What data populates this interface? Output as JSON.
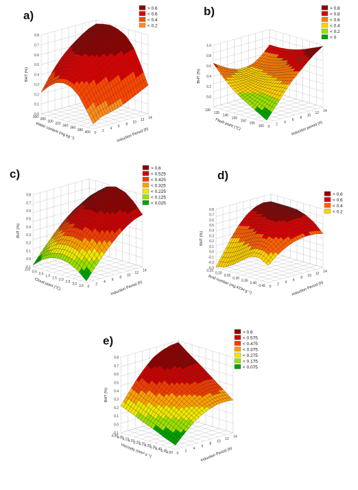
{
  "chart_data": [
    {
      "type": "surface",
      "panel_label": "a)",
      "xlabel": "Induction Period (h)",
      "ylabel": "Water content (mg kg⁻¹)",
      "zlabel": "BHT (%)",
      "x_ticks": [
        "0",
        "2",
        "4",
        "6",
        "8",
        "10",
        "12",
        "14"
      ],
      "y_ticks": [
        "260",
        "280",
        "300",
        "320",
        "340",
        "360",
        "380",
        "400"
      ],
      "z_ticks": [
        "0.0",
        "0.1",
        "0.2",
        "0.3",
        "0.4",
        "0.5",
        "0.6",
        "0.7",
        "0.8"
      ],
      "zlim": [
        0,
        0.8
      ],
      "legend": [
        "> 0.6",
        "< 0.6",
        "< 0.4",
        "< 0.2"
      ],
      "legend_colors": [
        "#8c0000",
        "#d90000",
        "#ff4600",
        "#ff8c1a"
      ],
      "surface": [
        [
          0.05,
          0.1,
          0.12,
          0.14,
          0.17,
          0.21,
          0.25,
          0.29
        ],
        [
          0.18,
          0.24,
          0.28,
          0.32,
          0.36,
          0.4,
          0.44,
          0.48
        ],
        [
          0.3,
          0.38,
          0.44,
          0.49,
          0.53,
          0.57,
          0.61,
          0.64
        ],
        [
          0.36,
          0.45,
          0.52,
          0.58,
          0.62,
          0.66,
          0.7,
          0.73
        ],
        [
          0.38,
          0.48,
          0.56,
          0.62,
          0.67,
          0.71,
          0.74,
          0.77
        ],
        [
          0.36,
          0.47,
          0.56,
          0.63,
          0.68,
          0.72,
          0.76,
          0.79
        ],
        [
          0.3,
          0.42,
          0.52,
          0.6,
          0.66,
          0.71,
          0.75,
          0.78
        ],
        [
          0.22,
          0.35,
          0.46,
          0.55,
          0.62,
          0.68,
          0.73,
          0.76
        ]
      ]
    },
    {
      "type": "surface",
      "panel_label": "b)",
      "xlabel": "Induction period (h)",
      "ylabel": "Flash point (°C)",
      "zlabel": "BHT (%)",
      "x_ticks": [
        "0",
        "2",
        "4",
        "6",
        "8",
        "10",
        "12",
        "14"
      ],
      "y_ticks": [
        "130",
        "135",
        "140",
        "145",
        "150",
        "155",
        "160"
      ],
      "z_ticks": [
        "0.0",
        "0.2",
        "0.4",
        "0.6",
        "0.8",
        "1.0"
      ],
      "zlim": [
        -0.2,
        1.0
      ],
      "legend": [
        "> 0.8",
        "< 0.8",
        "< 0.6",
        "< 0.4",
        "< 0.2",
        "< 0"
      ],
      "legend_colors": [
        "#8c0000",
        "#d90000",
        "#ff7a00",
        "#ffd200",
        "#9be000",
        "#00a000"
      ],
      "surface": [
        [
          -0.15,
          0.05,
          0.25,
          0.45,
          0.6,
          0.75,
          0.88,
          0.98
        ],
        [
          -0.05,
          0.1,
          0.25,
          0.4,
          0.55,
          0.68,
          0.8,
          0.9
        ],
        [
          0.05,
          0.15,
          0.25,
          0.36,
          0.48,
          0.6,
          0.72,
          0.82
        ],
        [
          0.15,
          0.2,
          0.26,
          0.33,
          0.42,
          0.52,
          0.64,
          0.76
        ],
        [
          0.28,
          0.28,
          0.29,
          0.32,
          0.38,
          0.47,
          0.58,
          0.72
        ],
        [
          0.45,
          0.4,
          0.36,
          0.34,
          0.37,
          0.44,
          0.55,
          0.7
        ],
        [
          0.65,
          0.55,
          0.46,
          0.4,
          0.39,
          0.43,
          0.54,
          0.7
        ]
      ]
    },
    {
      "type": "surface",
      "panel_label": "c)",
      "xlabel": "Induction Period (h)",
      "ylabel": "Cloud point (°C)",
      "zlabel": "BHT (%)",
      "x_ticks": [
        "0",
        "2",
        "4",
        "6",
        "8",
        "10",
        "12",
        "14"
      ],
      "y_ticks": [
        "-0.5",
        "0.0",
        "0.5",
        "1.0",
        "1.5",
        "2.0",
        "2.5",
        "3.0",
        "3.5"
      ],
      "z_ticks": [
        "-0.1",
        "0.0",
        "0.1",
        "0.2",
        "0.3",
        "0.4",
        "0.5",
        "0.6",
        "0.7",
        "0.8"
      ],
      "zlim": [
        -0.1,
        0.8
      ],
      "legend": [
        "> 0.6",
        "< 0.525",
        "< 0.425",
        "< 0.325",
        "< 0.225",
        "< 0.125",
        "< 0.025"
      ],
      "legend_colors": [
        "#8c0000",
        "#c80000",
        "#f03c00",
        "#ffa000",
        "#f0e600",
        "#9be000",
        "#00a000"
      ],
      "surface": [
        [
          -0.08,
          0.05,
          0.17,
          0.28,
          0.38,
          0.46,
          0.52,
          0.55
        ],
        [
          0.02,
          0.16,
          0.29,
          0.41,
          0.51,
          0.59,
          0.65,
          0.68
        ],
        [
          0.08,
          0.23,
          0.37,
          0.49,
          0.6,
          0.68,
          0.74,
          0.77
        ],
        [
          0.1,
          0.25,
          0.39,
          0.52,
          0.62,
          0.71,
          0.77,
          0.8
        ],
        [
          0.08,
          0.23,
          0.37,
          0.49,
          0.6,
          0.68,
          0.74,
          0.77
        ],
        [
          0.02,
          0.16,
          0.29,
          0.41,
          0.51,
          0.59,
          0.65,
          0.68
        ],
        [
          -0.08,
          0.05,
          0.17,
          0.28,
          0.38,
          0.46,
          0.52,
          0.55
        ]
      ]
    },
    {
      "type": "surface",
      "panel_label": "d)",
      "xlabel": "Induction Period (h)",
      "ylabel": "Acid number (mg KOH g⁻¹)",
      "zlabel": "BHT (%)",
      "x_ticks": [
        "0",
        "2",
        "4",
        "6",
        "8",
        "10",
        "12",
        "14"
      ],
      "y_ticks": [
        "0.15",
        "0.20",
        "0.25",
        "0.30",
        "0.35",
        "0.40",
        "0.45"
      ],
      "z_ticks": [
        "-0.3",
        "-0.2",
        "-0.1",
        "0.0",
        "0.1",
        "0.2",
        "0.3",
        "0.4",
        "0.5",
        "0.6",
        "0.7",
        "0.8"
      ],
      "zlim": [
        -0.3,
        0.8
      ],
      "legend": [
        "> 0.6",
        "< 0.6",
        "< 0.4",
        "< 0.2"
      ],
      "legend_colors": [
        "#8c0000",
        "#d90000",
        "#ff6000",
        "#ffd200"
      ],
      "surface": [
        [
          0.02,
          0.15,
          0.25,
          0.32,
          0.36,
          0.38,
          0.37,
          0.34
        ],
        [
          0.12,
          0.28,
          0.4,
          0.48,
          0.53,
          0.55,
          0.54,
          0.5
        ],
        [
          0.1,
          0.3,
          0.45,
          0.56,
          0.62,
          0.65,
          0.64,
          0.6
        ],
        [
          -0.02,
          0.22,
          0.42,
          0.56,
          0.65,
          0.69,
          0.69,
          0.65
        ],
        [
          -0.15,
          0.1,
          0.33,
          0.5,
          0.62,
          0.68,
          0.7,
          0.66
        ],
        [
          -0.25,
          0.0,
          0.25,
          0.44,
          0.58,
          0.66,
          0.68,
          0.66
        ],
        [
          -0.28,
          -0.05,
          0.2,
          0.4,
          0.55,
          0.64,
          0.68,
          0.66
        ]
      ]
    },
    {
      "type": "surface",
      "panel_label": "e)",
      "xlabel": "Induction Period (h)",
      "ylabel": "Viscosity (mm² s⁻¹)",
      "zlabel": "BHT (%)",
      "x_ticks": [
        "0",
        "2",
        "4",
        "6",
        "8",
        "10",
        "12",
        "14"
      ],
      "y_ticks": [
        "4.00",
        "4.05",
        "4.10",
        "4.15",
        "4.20",
        "4.25",
        "4.30",
        "4.35",
        "4.40",
        "4.45",
        "4.50"
      ],
      "z_ticks": [
        "-0.1",
        "0.0",
        "0.1",
        "0.2",
        "0.3",
        "0.4",
        "0.5",
        "0.6",
        "0.7",
        "0.8"
      ],
      "zlim": [
        -0.1,
        0.8
      ],
      "legend": [
        "> 0.6",
        "< 0.575",
        "< 0.475",
        "< 0.375",
        "< 0.275",
        "< 0.175",
        "< 0.075"
      ],
      "legend_colors": [
        "#8c0000",
        "#c80000",
        "#f03c00",
        "#ffa000",
        "#f0e600",
        "#9be000",
        "#00a000"
      ],
      "surface": [
        [
          -0.05,
          0.05,
          0.14,
          0.21,
          0.26,
          0.29,
          0.3,
          0.29
        ],
        [
          0.0,
          0.11,
          0.21,
          0.29,
          0.35,
          0.39,
          0.4,
          0.39
        ],
        [
          0.06,
          0.18,
          0.28,
          0.37,
          0.44,
          0.48,
          0.5,
          0.49
        ],
        [
          0.11,
          0.24,
          0.35,
          0.45,
          0.52,
          0.57,
          0.59,
          0.59
        ],
        [
          0.17,
          0.3,
          0.42,
          0.53,
          0.61,
          0.66,
          0.68,
          0.68
        ],
        [
          0.22,
          0.36,
          0.49,
          0.6,
          0.69,
          0.74,
          0.77,
          0.78
        ]
      ]
    }
  ]
}
